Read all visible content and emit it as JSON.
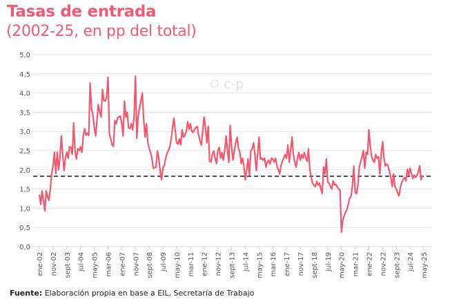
{
  "title": "Tasas de entrada",
  "subtitle": "(2002-25, en pp del total)",
  "source": {
    "label": "Fuente:",
    "text": " Elaboración propia en base a EIL, Secretaría de Trabajo"
  },
  "watermark": "c-p",
  "colors": {
    "line": "#f5566e",
    "reference": "#2b2f38",
    "grid": "#e3e3e3",
    "title": "#f25a73"
  },
  "chart_data": {
    "type": "line",
    "title": "Tasas de entrada",
    "subtitle": "(2002-25, en pp del total)",
    "xlabel": "",
    "ylabel": "",
    "ylim": [
      0,
      5
    ],
    "xlim": [
      "2002-01",
      "2025-10"
    ],
    "grid": true,
    "y_ticks": [
      "0,0",
      "0,5",
      "1,0",
      "1,5",
      "2,0",
      "2,5",
      "3,0",
      "3,5",
      "4,0",
      "4,5",
      "5,0"
    ],
    "x_ticks": [
      "ene-02",
      "nov-02",
      "sept-03",
      "jul-04",
      "may-05",
      "mar-06",
      "ene-07",
      "nov-07",
      "sept-08",
      "jul-09",
      "may-10",
      "mar-11",
      "ene-12",
      "nov-12",
      "sept-13",
      "jul-14",
      "may-15",
      "mar-16",
      "ene-17",
      "nov-17",
      "sept-18",
      "jul-19",
      "may-20",
      "mar-21",
      "ene-22",
      "nov-22",
      "sept-23",
      "jul-24",
      "may-25"
    ],
    "reference_line": {
      "value": 1.83,
      "style": "dashed"
    },
    "series": [
      {
        "points": [
          [
            "2002-01",
            1.35
          ],
          [
            "2002-02",
            1.1
          ],
          [
            "2002-03",
            1.45
          ],
          [
            "2002-04",
            1.2
          ],
          [
            "2002-05",
            0.93
          ],
          [
            "2002-06",
            1.45
          ],
          [
            "2002-07",
            1.3
          ],
          [
            "2002-08",
            1.2
          ],
          [
            "2002-09",
            1.5
          ],
          [
            "2002-10",
            1.9
          ],
          [
            "2002-11",
            2.1
          ],
          [
            "2002-12",
            2.46
          ],
          [
            "2003-01",
            1.9
          ],
          [
            "2003-02",
            2.46
          ],
          [
            "2003-03",
            2.0
          ],
          [
            "2003-04",
            2.3
          ],
          [
            "2003-05",
            2.88
          ],
          [
            "2003-06",
            2.4
          ],
          [
            "2003-07",
            1.98
          ],
          [
            "2003-08",
            2.3
          ],
          [
            "2003-09",
            2.46
          ],
          [
            "2003-10",
            2.3
          ],
          [
            "2003-11",
            2.6
          ],
          [
            "2003-12",
            2.58
          ],
          [
            "2004-01",
            2.4
          ],
          [
            "2004-02",
            3.22
          ],
          [
            "2004-03",
            2.5
          ],
          [
            "2004-04",
            2.28
          ],
          [
            "2004-05",
            2.55
          ],
          [
            "2004-06",
            2.5
          ],
          [
            "2004-07",
            2.6
          ],
          [
            "2004-08",
            2.45
          ],
          [
            "2004-09",
            2.9
          ],
          [
            "2004-10",
            3.07
          ],
          [
            "2004-11",
            2.9
          ],
          [
            "2004-12",
            2.95
          ],
          [
            "2005-01",
            2.9
          ],
          [
            "2005-02",
            4.26
          ],
          [
            "2005-03",
            3.6
          ],
          [
            "2005-04",
            3.43
          ],
          [
            "2005-05",
            3.1
          ],
          [
            "2005-06",
            2.88
          ],
          [
            "2005-07",
            3.3
          ],
          [
            "2005-08",
            3.7
          ],
          [
            "2005-09",
            3.5
          ],
          [
            "2005-10",
            3.37
          ],
          [
            "2005-11",
            4.09
          ],
          [
            "2005-12",
            3.8
          ],
          [
            "2006-01",
            3.79
          ],
          [
            "2006-02",
            3.9
          ],
          [
            "2006-03",
            4.41
          ],
          [
            "2006-04",
            2.94
          ],
          [
            "2006-05",
            2.8
          ],
          [
            "2006-06",
            2.65
          ],
          [
            "2006-07",
            2.61
          ],
          [
            "2006-08",
            3.28
          ],
          [
            "2006-09",
            3.2
          ],
          [
            "2006-10",
            3.35
          ],
          [
            "2006-11",
            3.38
          ],
          [
            "2006-12",
            3.4
          ],
          [
            "2007-01",
            3.2
          ],
          [
            "2007-02",
            2.88
          ],
          [
            "2007-03",
            3.79
          ],
          [
            "2007-04",
            3.37
          ],
          [
            "2007-05",
            3.5
          ],
          [
            "2007-06",
            3.1
          ],
          [
            "2007-07",
            3.07
          ],
          [
            "2007-08",
            3.2
          ],
          [
            "2007-09",
            3.04
          ],
          [
            "2007-10",
            3.4
          ],
          [
            "2007-11",
            4.44
          ],
          [
            "2007-12",
            2.82
          ],
          [
            "2008-01",
            3.4
          ],
          [
            "2008-02",
            3.6
          ],
          [
            "2008-03",
            3.8
          ],
          [
            "2008-04",
            4.0
          ],
          [
            "2008-05",
            3.3
          ],
          [
            "2008-06",
            2.85
          ],
          [
            "2008-07",
            3.2
          ],
          [
            "2008-08",
            2.7
          ],
          [
            "2008-09",
            2.55
          ],
          [
            "2008-10",
            2.45
          ],
          [
            "2008-11",
            2.3
          ],
          [
            "2008-12",
            2.04
          ],
          [
            "2009-01",
            2.05
          ],
          [
            "2009-02",
            2.07
          ],
          [
            "2009-03",
            2.49
          ],
          [
            "2009-04",
            2.3
          ],
          [
            "2009-05",
            1.95
          ],
          [
            "2009-06",
            1.74
          ],
          [
            "2009-07",
            2.05
          ],
          [
            "2009-08",
            2.1
          ],
          [
            "2009-09",
            2.3
          ],
          [
            "2009-10",
            2.43
          ],
          [
            "2009-11",
            2.5
          ],
          [
            "2009-12",
            2.6
          ],
          [
            "2010-01",
            2.8
          ],
          [
            "2010-02",
            3.1
          ],
          [
            "2010-03",
            3.34
          ],
          [
            "2010-04",
            3.0
          ],
          [
            "2010-05",
            2.7
          ],
          [
            "2010-06",
            2.67
          ],
          [
            "2010-07",
            2.8
          ],
          [
            "2010-08",
            2.65
          ],
          [
            "2010-09",
            3.04
          ],
          [
            "2010-10",
            2.85
          ],
          [
            "2010-11",
            2.9
          ],
          [
            "2010-12",
            3.0
          ],
          [
            "2011-01",
            3.25
          ],
          [
            "2011-02",
            3.05
          ],
          [
            "2011-03",
            3.2
          ],
          [
            "2011-04",
            3.0
          ],
          [
            "2011-05",
            2.97
          ],
          [
            "2011-06",
            3.05
          ],
          [
            "2011-07",
            3.1
          ],
          [
            "2011-08",
            3.13
          ],
          [
            "2011-09",
            2.9
          ],
          [
            "2011-10",
            2.75
          ],
          [
            "2011-11",
            2.64
          ],
          [
            "2011-12",
            3.0
          ],
          [
            "2012-01",
            3.37
          ],
          [
            "2012-02",
            3.1
          ],
          [
            "2012-03",
            2.7
          ],
          [
            "2012-04",
            3.13
          ],
          [
            "2012-05",
            2.22
          ],
          [
            "2012-06",
            2.2
          ],
          [
            "2012-07",
            2.4
          ],
          [
            "2012-08",
            2.49
          ],
          [
            "2012-09",
            2.3
          ],
          [
            "2012-10",
            2.16
          ],
          [
            "2012-11",
            2.5
          ],
          [
            "2012-12",
            2.58
          ],
          [
            "2013-01",
            2.3
          ],
          [
            "2013-02",
            2.45
          ],
          [
            "2013-03",
            2.25
          ],
          [
            "2013-04",
            2.5
          ],
          [
            "2013-05",
            2.88
          ],
          [
            "2013-06",
            2.5
          ],
          [
            "2013-07",
            2.19
          ],
          [
            "2013-08",
            3.16
          ],
          [
            "2013-09",
            2.6
          ],
          [
            "2013-10",
            2.25
          ],
          [
            "2013-11",
            2.5
          ],
          [
            "2013-12",
            2.7
          ],
          [
            "2014-01",
            2.85
          ],
          [
            "2014-02",
            2.55
          ],
          [
            "2014-03",
            2.46
          ],
          [
            "2014-04",
            2.16
          ],
          [
            "2014-05",
            2.3
          ],
          [
            "2014-06",
            2.1
          ],
          [
            "2014-07",
            1.74
          ],
          [
            "2014-08",
            2.0
          ],
          [
            "2014-09",
            2.28
          ],
          [
            "2014-10",
            1.86
          ],
          [
            "2014-11",
            2.49
          ],
          [
            "2014-12",
            2.55
          ],
          [
            "2015-01",
            2.7
          ],
          [
            "2015-02",
            2.4
          ],
          [
            "2015-03",
            1.98
          ],
          [
            "2015-04",
            2.4
          ],
          [
            "2015-05",
            2.85
          ],
          [
            "2015-06",
            2.28
          ],
          [
            "2015-07",
            2.3
          ],
          [
            "2015-08",
            2.25
          ],
          [
            "2015-09",
            2.3
          ],
          [
            "2015-10",
            2.07
          ],
          [
            "2015-11",
            2.2
          ],
          [
            "2015-12",
            2.25
          ],
          [
            "2016-01",
            2.15
          ],
          [
            "2016-02",
            2.3
          ],
          [
            "2016-03",
            2.28
          ],
          [
            "2016-04",
            2.2
          ],
          [
            "2016-05",
            2.3
          ],
          [
            "2016-06",
            2.1
          ],
          [
            "2016-07",
            2.0
          ],
          [
            "2016-08",
            1.89
          ],
          [
            "2016-09",
            2.1
          ],
          [
            "2016-10",
            2.22
          ],
          [
            "2016-11",
            2.3
          ],
          [
            "2016-12",
            2.4
          ],
          [
            "2017-01",
            2.3
          ],
          [
            "2017-02",
            2.64
          ],
          [
            "2017-03",
            2.19
          ],
          [
            "2017-04",
            2.5
          ],
          [
            "2017-05",
            2.85
          ],
          [
            "2017-06",
            2.4
          ],
          [
            "2017-07",
            2.2
          ],
          [
            "2017-08",
            2.07
          ],
          [
            "2017-09",
            2.3
          ],
          [
            "2017-10",
            2.45
          ],
          [
            "2017-11",
            2.25
          ],
          [
            "2017-12",
            2.4
          ],
          [
            "2018-01",
            2.3
          ],
          [
            "2018-02",
            2.45
          ],
          [
            "2018-03",
            2.3
          ],
          [
            "2018-04",
            2.22
          ],
          [
            "2018-05",
            2.55
          ],
          [
            "2018-06",
            2.0
          ],
          [
            "2018-07",
            1.8
          ],
          [
            "2018-08",
            1.65
          ],
          [
            "2018-09",
            1.6
          ],
          [
            "2018-10",
            1.56
          ],
          [
            "2018-11",
            1.7
          ],
          [
            "2018-12",
            1.6
          ],
          [
            "2019-01",
            1.65
          ],
          [
            "2019-02",
            1.5
          ],
          [
            "2019-03",
            1.38
          ],
          [
            "2019-04",
            2.07
          ],
          [
            "2019-05",
            1.89
          ],
          [
            "2019-06",
            2.28
          ],
          [
            "2019-07",
            1.68
          ],
          [
            "2019-08",
            1.65
          ],
          [
            "2019-09",
            1.55
          ],
          [
            "2019-10",
            1.5
          ],
          [
            "2019-11",
            1.71
          ],
          [
            "2019-12",
            1.6
          ],
          [
            "2020-01",
            1.62
          ],
          [
            "2020-02",
            1.55
          ],
          [
            "2020-03",
            1.5
          ],
          [
            "2020-04",
            1.47
          ],
          [
            "2020-05",
            0.37
          ],
          [
            "2020-06",
            0.69
          ],
          [
            "2020-07",
            0.8
          ],
          [
            "2020-08",
            0.9
          ],
          [
            "2020-09",
            0.96
          ],
          [
            "2020-10",
            1.1
          ],
          [
            "2020-11",
            1.26
          ],
          [
            "2020-12",
            1.3
          ],
          [
            "2021-01",
            1.59
          ],
          [
            "2021-02",
            2.1
          ],
          [
            "2021-03",
            1.4
          ],
          [
            "2021-04",
            1.38
          ],
          [
            "2021-05",
            1.6
          ],
          [
            "2021-06",
            2.07
          ],
          [
            "2021-07",
            2.2
          ],
          [
            "2021-08",
            2.34
          ],
          [
            "2021-09",
            2.5
          ],
          [
            "2021-10",
            2.04
          ],
          [
            "2021-11",
            2.46
          ],
          [
            "2021-12",
            2.4
          ],
          [
            "2022-01",
            3.04
          ],
          [
            "2022-02",
            2.6
          ],
          [
            "2022-03",
            2.34
          ],
          [
            "2022-04",
            2.25
          ],
          [
            "2022-05",
            2.19
          ],
          [
            "2022-06",
            2.4
          ],
          [
            "2022-07",
            2.3
          ],
          [
            "2022-08",
            2.34
          ],
          [
            "2022-09",
            1.89
          ],
          [
            "2022-10",
            2.43
          ],
          [
            "2022-11",
            2.73
          ],
          [
            "2022-12",
            2.3
          ],
          [
            "2023-01",
            2.1
          ],
          [
            "2023-02",
            2.15
          ],
          [
            "2023-03",
            2.1
          ],
          [
            "2023-04",
            1.95
          ],
          [
            "2023-05",
            1.8
          ],
          [
            "2023-06",
            1.56
          ],
          [
            "2023-07",
            1.89
          ],
          [
            "2023-08",
            1.55
          ],
          [
            "2023-09",
            1.5
          ],
          [
            "2023-10",
            1.38
          ],
          [
            "2023-11",
            1.32
          ],
          [
            "2023-12",
            1.55
          ],
          [
            "2024-01",
            1.68
          ],
          [
            "2024-02",
            1.75
          ],
          [
            "2024-03",
            1.8
          ],
          [
            "2024-04",
            1.71
          ],
          [
            "2024-05",
            2.01
          ],
          [
            "2024-06",
            1.85
          ],
          [
            "2024-07",
            2.04
          ],
          [
            "2024-08",
            1.9
          ],
          [
            "2024-09",
            1.77
          ],
          [
            "2024-10",
            1.86
          ],
          [
            "2024-11",
            1.8
          ],
          [
            "2024-12",
            1.85
          ],
          [
            "2025-01",
            1.95
          ],
          [
            "2025-02",
            2.1
          ],
          [
            "2025-03",
            1.74
          ],
          [
            "2025-04",
            1.86
          ]
        ]
      }
    ]
  }
}
